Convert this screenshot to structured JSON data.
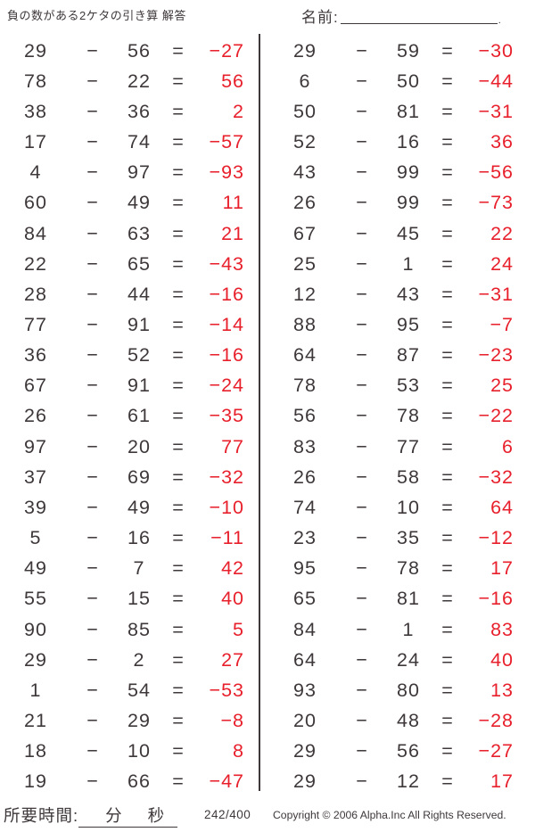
{
  "header": {
    "title": "負の数がある2ケタの引き算 解答",
    "name_label": "名前:"
  },
  "operators": {
    "minus": "−",
    "equals": "="
  },
  "colors": {
    "ink": "#3e383a",
    "answer_red": "#e8202c"
  },
  "columns": {
    "left": [
      {
        "a": 29,
        "b": 56,
        "ans": -27
      },
      {
        "a": 78,
        "b": 22,
        "ans": 56
      },
      {
        "a": 38,
        "b": 36,
        "ans": 2
      },
      {
        "a": 17,
        "b": 74,
        "ans": -57
      },
      {
        "a": 4,
        "b": 97,
        "ans": -93
      },
      {
        "a": 60,
        "b": 49,
        "ans": 11
      },
      {
        "a": 84,
        "b": 63,
        "ans": 21
      },
      {
        "a": 22,
        "b": 65,
        "ans": -43
      },
      {
        "a": 28,
        "b": 44,
        "ans": -16
      },
      {
        "a": 77,
        "b": 91,
        "ans": -14
      },
      {
        "a": 36,
        "b": 52,
        "ans": -16
      },
      {
        "a": 67,
        "b": 91,
        "ans": -24
      },
      {
        "a": 26,
        "b": 61,
        "ans": -35
      },
      {
        "a": 97,
        "b": 20,
        "ans": 77
      },
      {
        "a": 37,
        "b": 69,
        "ans": -32
      },
      {
        "a": 39,
        "b": 49,
        "ans": -10
      },
      {
        "a": 5,
        "b": 16,
        "ans": -11
      },
      {
        "a": 49,
        "b": 7,
        "ans": 42
      },
      {
        "a": 55,
        "b": 15,
        "ans": 40
      },
      {
        "a": 90,
        "b": 85,
        "ans": 5
      },
      {
        "a": 29,
        "b": 2,
        "ans": 27
      },
      {
        "a": 1,
        "b": 54,
        "ans": -53
      },
      {
        "a": 21,
        "b": 29,
        "ans": -8
      },
      {
        "a": 18,
        "b": 10,
        "ans": 8
      },
      {
        "a": 19,
        "b": 66,
        "ans": -47
      }
    ],
    "right": [
      {
        "a": 29,
        "b": 59,
        "ans": -30
      },
      {
        "a": 6,
        "b": 50,
        "ans": -44
      },
      {
        "a": 50,
        "b": 81,
        "ans": -31
      },
      {
        "a": 52,
        "b": 16,
        "ans": 36
      },
      {
        "a": 43,
        "b": 99,
        "ans": -56
      },
      {
        "a": 26,
        "b": 99,
        "ans": -73
      },
      {
        "a": 67,
        "b": 45,
        "ans": 22
      },
      {
        "a": 25,
        "b": 1,
        "ans": 24
      },
      {
        "a": 12,
        "b": 43,
        "ans": -31
      },
      {
        "a": 88,
        "b": 95,
        "ans": -7
      },
      {
        "a": 64,
        "b": 87,
        "ans": -23
      },
      {
        "a": 78,
        "b": 53,
        "ans": 25
      },
      {
        "a": 56,
        "b": 78,
        "ans": -22
      },
      {
        "a": 83,
        "b": 77,
        "ans": 6
      },
      {
        "a": 26,
        "b": 58,
        "ans": -32
      },
      {
        "a": 74,
        "b": 10,
        "ans": 64
      },
      {
        "a": 23,
        "b": 35,
        "ans": -12
      },
      {
        "a": 95,
        "b": 78,
        "ans": 17
      },
      {
        "a": 65,
        "b": 81,
        "ans": -16
      },
      {
        "a": 84,
        "b": 1,
        "ans": 83
      },
      {
        "a": 64,
        "b": 24,
        "ans": 40
      },
      {
        "a": 93,
        "b": 80,
        "ans": 13
      },
      {
        "a": 20,
        "b": 48,
        "ans": -28
      },
      {
        "a": 29,
        "b": 56,
        "ans": -27
      },
      {
        "a": 29,
        "b": 12,
        "ans": 17
      }
    ]
  },
  "footer": {
    "time_label": "所要時間:",
    "minutes_label": "分",
    "seconds_label": "秒",
    "page_number": "242/400",
    "copyright": "Copyright © 2006 Alpha.Inc All Rights Reserved."
  }
}
